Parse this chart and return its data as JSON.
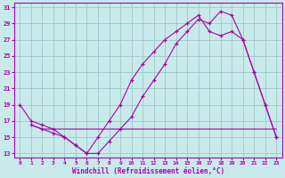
{
  "xlabel": "Windchill (Refroidissement éolien,°C)",
  "bg_color": "#c8eaeb",
  "grid_color": "#a0c8c8",
  "line_color": "#aa00aa",
  "spine_color": "#aa00aa",
  "xlim": [
    -0.5,
    23.5
  ],
  "ylim": [
    12.5,
    31.5
  ],
  "xticks": [
    0,
    1,
    2,
    3,
    4,
    5,
    6,
    7,
    8,
    9,
    10,
    11,
    12,
    13,
    14,
    15,
    16,
    17,
    18,
    19,
    20,
    21,
    22,
    23
  ],
  "yticks": [
    13,
    15,
    17,
    19,
    21,
    23,
    25,
    27,
    29,
    31
  ],
  "series1_x": [
    0,
    1,
    2,
    3,
    4,
    5,
    6,
    7,
    8,
    9,
    10,
    11,
    12,
    13,
    14,
    15,
    16,
    17,
    18,
    19,
    20,
    21,
    22,
    23
  ],
  "series1_y": [
    19,
    17,
    16.5,
    16,
    15,
    14,
    13,
    13,
    14.5,
    16,
    17.5,
    20,
    22,
    24,
    26.5,
    28,
    29.5,
    29,
    30.5,
    30,
    27,
    23,
    19,
    15
  ],
  "series2_x": [
    1,
    2,
    3,
    4,
    5,
    6,
    7,
    8,
    9,
    10,
    11,
    12,
    13,
    14,
    15,
    16,
    17,
    18,
    19,
    20,
    21,
    22,
    23
  ],
  "series2_y": [
    16.5,
    16,
    16,
    16,
    16,
    16,
    16,
    16,
    16,
    16,
    16,
    16,
    16,
    16,
    16,
    16,
    16,
    16,
    16,
    16,
    16,
    16,
    16
  ],
  "series3_x": [
    1,
    2,
    3,
    4,
    5,
    6,
    7,
    8,
    9,
    10,
    11,
    12,
    13,
    14,
    15,
    16,
    17,
    18,
    19,
    20,
    21,
    22,
    23
  ],
  "series3_y": [
    16.5,
    16,
    15.5,
    15,
    14,
    13,
    15,
    17,
    19,
    22,
    24,
    25.5,
    27,
    28,
    29,
    30,
    28,
    27.5,
    28,
    27,
    23,
    19,
    15
  ]
}
